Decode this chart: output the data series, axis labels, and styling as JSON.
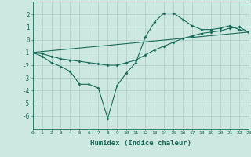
{
  "title": "",
  "xlabel": "Humidex (Indice chaleur)",
  "ylabel": "",
  "bg_color": "#cce8e0",
  "line_color": "#1a6b5a",
  "grid_color": "#aaccc4",
  "x_min": 0,
  "x_max": 23,
  "y_min": -7,
  "y_max": 3,
  "line1_x": [
    0,
    1,
    2,
    3,
    4,
    5,
    6,
    7,
    8,
    9,
    10,
    11,
    12,
    13,
    14,
    15,
    16,
    17,
    18,
    19,
    20,
    21,
    22,
    23
  ],
  "line1_y": [
    -1.0,
    -1.3,
    -1.8,
    -2.1,
    -2.5,
    -3.5,
    -3.5,
    -3.8,
    -6.2,
    -3.6,
    -2.6,
    -1.8,
    0.2,
    1.4,
    2.1,
    2.1,
    1.6,
    1.1,
    0.8,
    0.8,
    0.9,
    1.1,
    0.8,
    0.6
  ],
  "line2_x": [
    0,
    1,
    2,
    3,
    4,
    5,
    6,
    7,
    8,
    9,
    10,
    11,
    12,
    13,
    14,
    15,
    16,
    17,
    18,
    19,
    20,
    21,
    22,
    23
  ],
  "line2_y": [
    -1.0,
    -1.1,
    -1.3,
    -1.5,
    -1.6,
    -1.7,
    -1.8,
    -1.9,
    -2.0,
    -2.0,
    -1.8,
    -1.6,
    -1.2,
    -0.8,
    -0.5,
    -0.2,
    0.1,
    0.3,
    0.5,
    0.6,
    0.7,
    0.9,
    1.0,
    0.6
  ],
  "line3_x": [
    0,
    23
  ],
  "line3_y": [
    -1.0,
    0.6
  ],
  "yticks": [
    -6,
    -5,
    -4,
    -3,
    -2,
    -1,
    0,
    1,
    2
  ],
  "xtick_fontsize": 4.5,
  "ytick_fontsize": 5.5,
  "xlabel_fontsize": 6.5
}
